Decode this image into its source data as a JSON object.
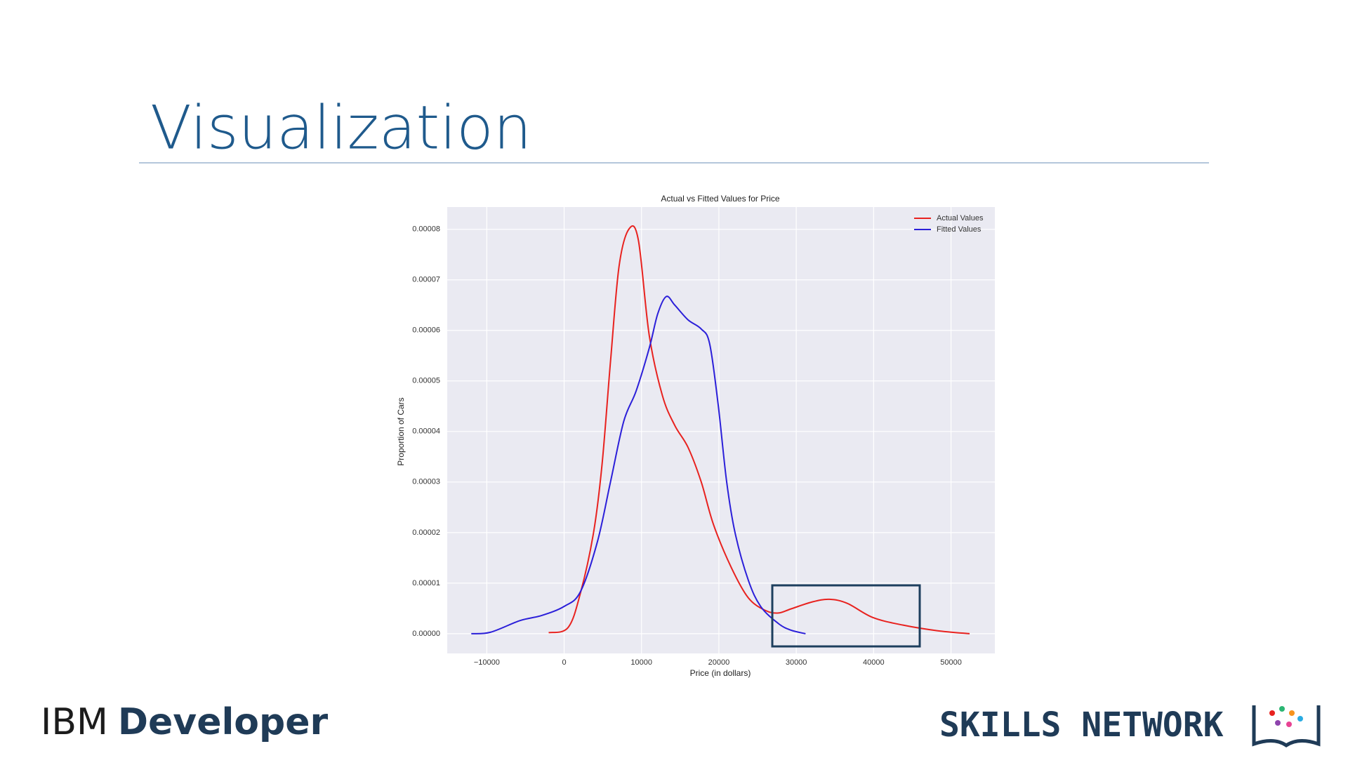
{
  "slide": {
    "title": "Visualization",
    "brand_left_light": "IBM",
    "brand_left_bold": "Developer",
    "brand_right": "SKILLS NETWORK"
  },
  "chart_data": {
    "type": "line",
    "title": "Actual vs Fitted Values for Price",
    "x_label": "Price (in dollars)",
    "y_label": "Proportion of Cars",
    "xlim": [
      -15111,
      55667
    ],
    "ylim": [
      -3.9e-06,
      8.44e-05
    ],
    "xticks": [
      {
        "value": -10000,
        "label": "−10000"
      },
      0,
      10000,
      20000,
      30000,
      40000,
      50000
    ],
    "yticks": [
      {
        "value": 0,
        "label": "0.00000"
      },
      {
        "value": 1e-05,
        "label": "0.00001"
      },
      {
        "value": 2e-05,
        "label": "0.00002"
      },
      {
        "value": 3e-05,
        "label": "0.00003"
      },
      {
        "value": 4e-05,
        "label": "0.00004"
      },
      {
        "value": 5e-05,
        "label": "0.00005"
      },
      {
        "value": 6e-05,
        "label": "0.00006"
      },
      {
        "value": 7e-05,
        "label": "0.00007"
      },
      {
        "value": 8e-05,
        "label": "0.00008"
      }
    ],
    "grid": true,
    "legend": "upper right",
    "series": [
      {
        "name": "Actual Values",
        "color": "#e8221f",
        "x": [
          -2000,
          500,
          2100,
          3800,
          4900,
          6000,
          7100,
          8400,
          9600,
          11000,
          12700,
          14300,
          16000,
          17700,
          19300,
          21600,
          23800,
          26000,
          27700,
          29300,
          32100,
          34300,
          36600,
          39900,
          43800,
          48200,
          52400
        ],
        "values": [
          2e-07,
          1.2e-06,
          8e-06,
          2e-05,
          3.35e-05,
          5.4e-05,
          7.27e-05,
          8.01e-05,
          7.78e-05,
          5.9e-05,
          4.71e-05,
          4.12e-05,
          3.69e-05,
          3.01e-05,
          2.16e-05,
          1.31e-05,
          7.1e-06,
          4.6e-06,
          4.1e-06,
          4.9e-06,
          6.3e-06,
          6.8e-06,
          6e-06,
          3.2e-06,
          1.7e-06,
          6e-07,
          0
        ]
      },
      {
        "name": "Fitted Values",
        "color": "#2b1fd9",
        "x": [
          -12000,
          -9500,
          -5700,
          -2900,
          0,
          2100,
          4300,
          6000,
          7700,
          9300,
          11000,
          12100,
          13200,
          14300,
          16000,
          17700,
          18800,
          19900,
          21000,
          22100,
          23800,
          25400,
          27700,
          29300,
          31200
        ],
        "values": [
          0,
          3e-07,
          2.6e-06,
          3.6e-06,
          5.4e-06,
          8.3e-06,
          1.82e-05,
          3.01e-05,
          4.2e-05,
          4.8e-05,
          5.65e-05,
          6.33e-05,
          6.67e-05,
          6.5e-05,
          6.21e-05,
          6.03e-05,
          5.74e-05,
          4.54e-05,
          3.01e-05,
          1.99e-05,
          1.06e-05,
          5.4e-06,
          2e-06,
          7e-07,
          0
        ]
      }
    ]
  }
}
